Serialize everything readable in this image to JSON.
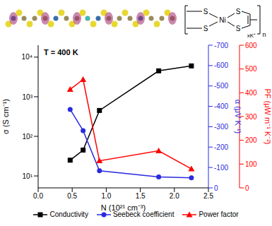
{
  "chart_data": {
    "type": "line",
    "annotations": [
      "T = 400 K"
    ],
    "inset_labels": [
      "S",
      "S",
      "S",
      "S",
      "Ni",
      "xK⁺",
      "n"
    ],
    "xlabel": "N (10²¹ cm⁻³)",
    "ylabel": "σ (S cm⁻¹)",
    "y2label": "α (μV K⁻¹)",
    "y3label": "PF (μW m⁻¹ K⁻²)",
    "x": [
      0.47,
      0.66,
      0.9,
      1.77,
      2.25
    ],
    "xlim": [
      0,
      2.5
    ],
    "xticks": [
      {
        "value": 0,
        "label": "0.0"
      },
      0.5,
      {
        "value": 1,
        "label": "1.0"
      },
      1.5,
      {
        "value": 2,
        "label": "2.0"
      },
      2.5
    ],
    "log": "y",
    "ylim": [
      5,
      20000
    ],
    "yticks": [
      {
        "value": 10,
        "label": "10¹"
      },
      {
        "value": 100,
        "label": "10²"
      },
      {
        "value": 1000,
        "label": "10³"
      },
      {
        "value": 10000,
        "label": "10⁴"
      }
    ],
    "y2lim": [
      0,
      -700
    ],
    "y2ticks": [
      0,
      -100,
      -200,
      -300,
      -400,
      -500,
      -600,
      -700
    ],
    "y3lim": [
      0,
      600
    ],
    "y3ticks": [
      0,
      100,
      200,
      300,
      400,
      500,
      600
    ],
    "grid": false,
    "legend": "bottom",
    "series": [
      {
        "name": "Conductivity",
        "color": "#000000",
        "marker": "square",
        "values": [
          25,
          45,
          450,
          4500,
          6000
        ]
      },
      {
        "name": "Seebeck coefficient",
        "color": "#2a2ae0",
        "marker": "circle",
        "axis": "y2",
        "values": [
          -385,
          -281,
          -84,
          -54,
          -49
        ]
      },
      {
        "name": "Power factor",
        "color": "#ff0000",
        "marker": "triangle",
        "axis": "y3",
        "values": [
          414,
          456,
          114,
          156,
          80
        ]
      }
    ]
  }
}
